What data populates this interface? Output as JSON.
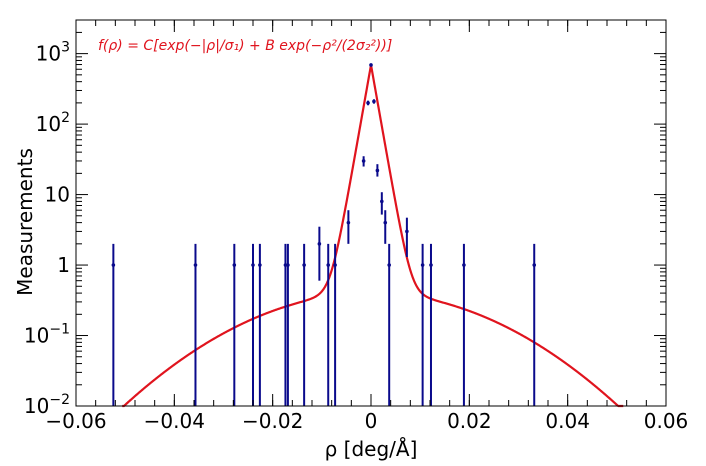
{
  "chart_data": {
    "type": "scatter",
    "title": "",
    "annotation": "f(ρ) = C[exp(−|ρ|/σ₁) + B exp(−ρ²/(2σ₂²))]",
    "xlabel": "ρ [deg/Å]",
    "ylabel": "Measurements",
    "xlim": [
      -0.06,
      0.06
    ],
    "ylim": [
      0.01,
      3000
    ],
    "yscale": "log",
    "grid": false,
    "x_ticks": [
      "−0.06",
      "−0.04",
      "−0.02",
      "0",
      "0.02",
      "0.04",
      "0.06"
    ],
    "y_ticks": [
      {
        "base": "10",
        "exp": "−2",
        "value": 0.01
      },
      {
        "base": "10",
        "exp": "−1",
        "value": 0.1
      },
      {
        "base": "1",
        "exp": "",
        "value": 1
      },
      {
        "base": "10",
        "exp": "",
        "value": 10
      },
      {
        "base": "10",
        "exp": "2",
        "value": 100
      },
      {
        "base": "10",
        "exp": "3",
        "value": 1000
      }
    ],
    "data_color": "#0a0a8c",
    "fit_color": "#e0141e",
    "points": [
      {
        "x": -0.0524,
        "y": 1,
        "ylo": 0.01,
        "yhi": 2
      },
      {
        "x": -0.0357,
        "y": 1,
        "ylo": 0.01,
        "yhi": 2
      },
      {
        "x": -0.0278,
        "y": 1,
        "ylo": 0.01,
        "yhi": 2
      },
      {
        "x": -0.024,
        "y": 1,
        "ylo": 0.01,
        "yhi": 2
      },
      {
        "x": -0.0226,
        "y": 1,
        "ylo": 0.01,
        "yhi": 2
      },
      {
        "x": -0.0174,
        "y": 1,
        "ylo": 0.01,
        "yhi": 2
      },
      {
        "x": -0.0169,
        "y": 1,
        "ylo": 0.01,
        "yhi": 2
      },
      {
        "x": -0.0136,
        "y": 1,
        "ylo": 0.01,
        "yhi": 2
      },
      {
        "x": -0.0105,
        "y": 2,
        "ylo": 0.6,
        "yhi": 3.5
      },
      {
        "x": -0.0087,
        "y": 1,
        "ylo": 0.01,
        "yhi": 2
      },
      {
        "x": -0.0073,
        "y": 1,
        "ylo": 0.01,
        "yhi": 2
      },
      {
        "x": -0.0046,
        "y": 4,
        "ylo": 2,
        "yhi": 6
      },
      {
        "x": -0.0015,
        "y": 30,
        "ylo": 25,
        "yhi": 35
      },
      {
        "x": -0.0006,
        "y": 200,
        "ylo": 185,
        "yhi": 215
      },
      {
        "x": 0.0,
        "y": 690,
        "ylo": 665,
        "yhi": 715
      },
      {
        "x": 0.0006,
        "y": 210,
        "ylo": 195,
        "yhi": 225
      },
      {
        "x": 0.0013,
        "y": 22,
        "ylo": 18,
        "yhi": 27
      },
      {
        "x": 0.0022,
        "y": 8,
        "ylo": 5.2,
        "yhi": 10.8
      },
      {
        "x": 0.0029,
        "y": 4,
        "ylo": 2,
        "yhi": 6
      },
      {
        "x": 0.0037,
        "y": 1,
        "ylo": 0.01,
        "yhi": 2
      },
      {
        "x": 0.0073,
        "y": 3,
        "ylo": 1.3,
        "yhi": 4.7
      },
      {
        "x": 0.0105,
        "y": 1,
        "ylo": 0.01,
        "yhi": 2
      },
      {
        "x": 0.0122,
        "y": 1,
        "ylo": 0.01,
        "yhi": 2
      },
      {
        "x": 0.0189,
        "y": 1,
        "ylo": 0.01,
        "yhi": 2
      },
      {
        "x": 0.0332,
        "y": 1,
        "ylo": 0.01,
        "yhi": 2
      }
    ],
    "fit": {
      "C": 690,
      "sigma1": 0.0011,
      "B": 0.00058,
      "sigma2": 0.0185,
      "x_range": [
        -0.0506,
        0.0513
      ]
    }
  }
}
